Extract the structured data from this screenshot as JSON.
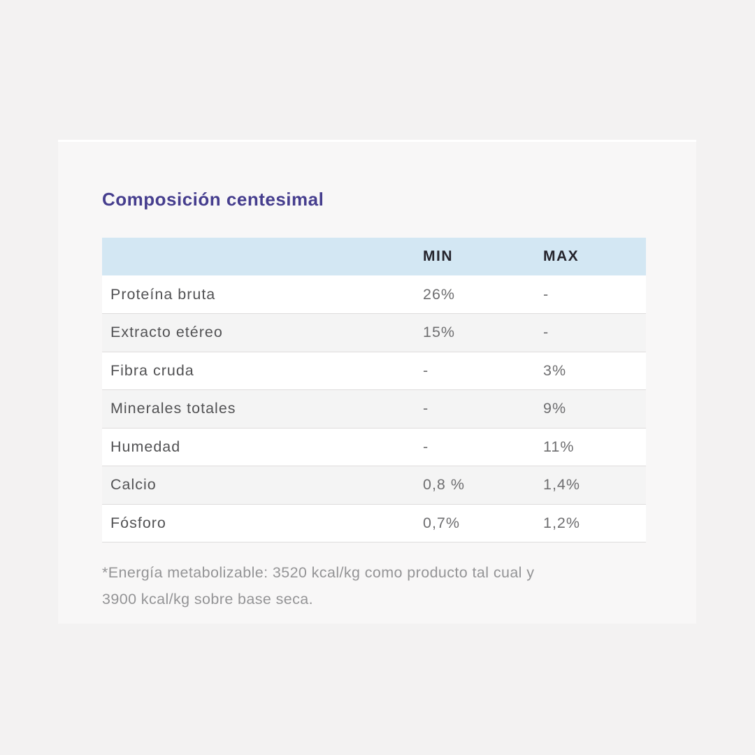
{
  "section": {
    "title": "Composición centesimal"
  },
  "table": {
    "headers": {
      "parameter": "",
      "min": "MIN",
      "max": "MAX"
    },
    "rows": [
      {
        "label": "Proteína bruta",
        "min": "26%",
        "max": "-"
      },
      {
        "label": "Extracto etéreo",
        "min": "15%",
        "max": "-"
      },
      {
        "label": "Fibra cruda",
        "min": "-",
        "max": "3%"
      },
      {
        "label": "Minerales totales",
        "min": "-",
        "max": "9%"
      },
      {
        "label": "Humedad",
        "min": "-",
        "max": "11%"
      },
      {
        "label": "Calcio",
        "min": "0,8 %",
        "max": "1,4%"
      },
      {
        "label": "Fósforo",
        "min": "0,7%",
        "max": "1,2%"
      }
    ]
  },
  "footnote": {
    "lines": [
      "*Energía metabolizable: 3520 kcal/kg como producto tal cual y",
      "3900 kcal/kg sobre base seca."
    ]
  },
  "colors": {
    "page_bg": "#f3f2f2",
    "panel_bg": "#f8f7f7",
    "title_text": "#463e8e",
    "header_bg": "#d3e7f3",
    "header_text": "#25242c",
    "label_text": "#525254",
    "value_text": "#6e6e70",
    "row_alt_bg": "#f4f4f4",
    "row_border": "#dedcdc",
    "footnote_text": "#949496"
  }
}
